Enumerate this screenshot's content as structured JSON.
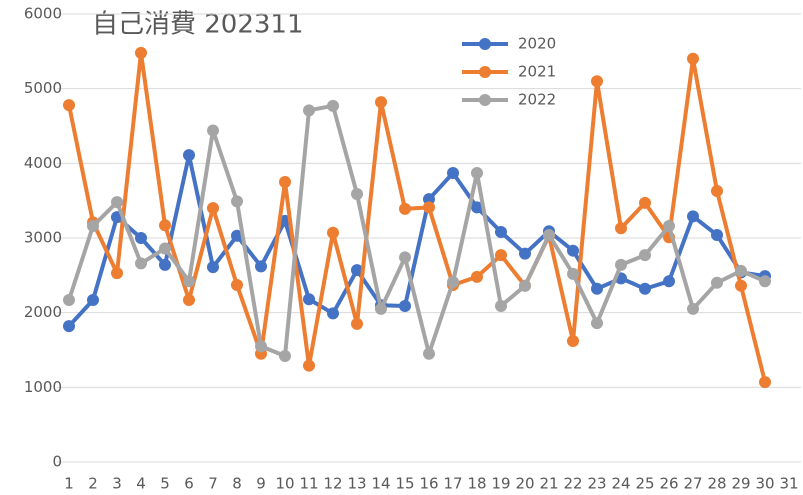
{
  "chart_data": {
    "type": "line",
    "title": "自己消費 202311",
    "categories": [
      "1",
      "2",
      "3",
      "4",
      "5",
      "6",
      "7",
      "8",
      "9",
      "10",
      "11",
      "12",
      "13",
      "14",
      "15",
      "16",
      "17",
      "18",
      "19",
      "20",
      "21",
      "22",
      "23",
      "24",
      "25",
      "26",
      "27",
      "28",
      "29",
      "30",
      "31"
    ],
    "series": [
      {
        "name": "2020",
        "color": "#4472c4",
        "values": [
          1820,
          2170,
          3280,
          3000,
          2640,
          4110,
          2610,
          3030,
          2620,
          3230,
          2180,
          1990,
          2570,
          2100,
          2090,
          3520,
          3870,
          3410,
          3080,
          2790,
          3090,
          2830,
          2320,
          2460,
          2320,
          2420,
          3290,
          3040,
          2540,
          2490,
          null
        ]
      },
      {
        "name": "2021",
        "color": "#ed7d31",
        "values": [
          4780,
          3210,
          2530,
          5480,
          3170,
          2170,
          3400,
          2370,
          1450,
          3750,
          1290,
          3070,
          1850,
          4820,
          3390,
          3410,
          2370,
          2480,
          2770,
          2360,
          3030,
          1620,
          5100,
          3130,
          3470,
          3010,
          5400,
          3630,
          2360,
          1070,
          null
        ]
      },
      {
        "name": "2022",
        "color": "#a5a5a5",
        "values": [
          2170,
          3160,
          3480,
          2660,
          2860,
          2420,
          4440,
          3490,
          1550,
          1420,
          4710,
          4770,
          3590,
          2050,
          2740,
          1450,
          2410,
          3870,
          2090,
          2360,
          3040,
          2520,
          1860,
          2640,
          2770,
          3160,
          2050,
          2400,
          2560,
          2420,
          null
        ]
      }
    ],
    "ylim": [
      0,
      6000
    ],
    "yticks": [
      0,
      1000,
      2000,
      3000,
      4000,
      5000,
      6000
    ],
    "grid": true,
    "legend": "top"
  }
}
